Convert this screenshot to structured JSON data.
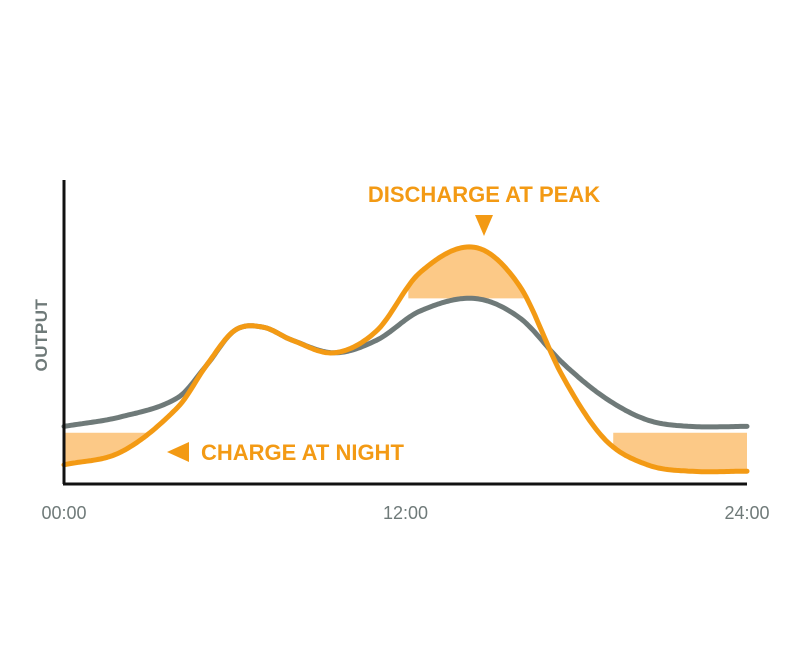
{
  "chart_data": {
    "type": "line",
    "xlabel": "",
    "ylabel": "OUTPUT",
    "xlim": [
      0,
      24
    ],
    "x_ticks": [
      "00:00",
      "12:00",
      "24:00"
    ],
    "x_tick_values": [
      0,
      12,
      24
    ],
    "grid": false,
    "series": [
      {
        "name": "",
        "color": "#6f7a79",
        "points": [
          [
            0,
            0.18
          ],
          [
            2,
            0.21
          ],
          [
            4,
            0.27
          ],
          [
            5,
            0.37
          ],
          [
            6,
            0.48
          ],
          [
            7,
            0.49
          ],
          [
            8,
            0.45
          ],
          [
            9.5,
            0.41
          ],
          [
            11,
            0.45
          ],
          [
            12.5,
            0.54
          ],
          [
            14.4,
            0.58
          ],
          [
            16,
            0.52
          ],
          [
            17.5,
            0.38
          ],
          [
            19,
            0.27
          ],
          [
            20.5,
            0.2
          ],
          [
            22,
            0.18
          ],
          [
            24,
            0.18
          ]
        ]
      },
      {
        "name": "",
        "color": "#f39a14",
        "points": [
          [
            0,
            0.06
          ],
          [
            2,
            0.1
          ],
          [
            4,
            0.24
          ],
          [
            5,
            0.37
          ],
          [
            6,
            0.48
          ],
          [
            7,
            0.49
          ],
          [
            8,
            0.45
          ],
          [
            9.5,
            0.41
          ],
          [
            11,
            0.48
          ],
          [
            12.5,
            0.66
          ],
          [
            14.4,
            0.74
          ],
          [
            16,
            0.62
          ],
          [
            17.5,
            0.34
          ],
          [
            19,
            0.14
          ],
          [
            20.5,
            0.06
          ],
          [
            22,
            0.04
          ],
          [
            24,
            0.04
          ]
        ]
      }
    ],
    "shaded_regions": [
      {
        "x_range": [
          0,
          3.5
        ],
        "between": "series",
        "color": "#fcc987"
      },
      {
        "x_range": [
          12.1,
          16.9
        ],
        "between": "series",
        "color": "#fcc987"
      },
      {
        "x_range": [
          19.3,
          24
        ],
        "between": "series",
        "color": "#fcc987"
      }
    ],
    "annotations": [
      {
        "text": "DISCHARGE AT PEAK",
        "color": "#f39a14",
        "marker": "down-triangle"
      },
      {
        "text": "CHARGE AT NIGHT",
        "color": "#f39a14",
        "marker": "left-triangle"
      }
    ]
  }
}
